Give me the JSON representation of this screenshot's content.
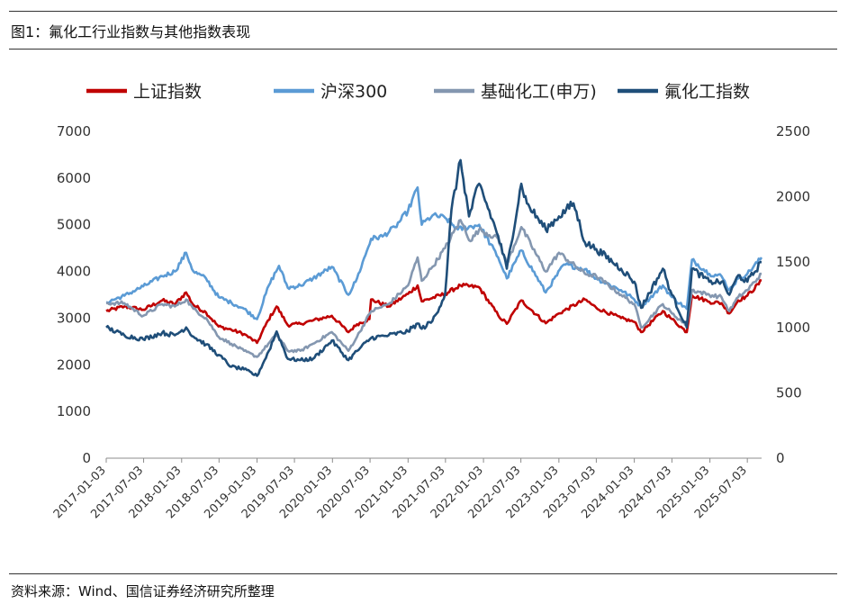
{
  "figure": {
    "title": "图1：氟化工行业指数与其他指数表现",
    "source": "资料来源：Wind、国信证券经济研究所整理"
  },
  "chart_data": {
    "type": "line",
    "title": "",
    "xlabel": "",
    "ylabel_left": "",
    "ylabel_right": "",
    "legend_position": "top",
    "grid": false,
    "x_range": [
      "2017-01-03",
      "2025-09-10"
    ],
    "x_ticks": [
      "2017-01-03",
      "2017-07-03",
      "2018-01-03",
      "2018-07-03",
      "2019-01-03",
      "2019-07-03",
      "2020-01-03",
      "2020-07-03",
      "2021-01-03",
      "2021-07-03",
      "2022-01-03",
      "2022-07-03",
      "2023-01-03",
      "2023-07-03",
      "2024-01-03",
      "2024-07-03",
      "2025-01-03",
      "2025-07-03"
    ],
    "y_left": {
      "range": [
        0,
        7000
      ],
      "ticks": [
        "0",
        "1000",
        "2000",
        "3000",
        "4000",
        "5000",
        "6000",
        "7000"
      ]
    },
    "y_right": {
      "range": [
        0,
        2500
      ],
      "ticks": [
        "0",
        "500",
        "1000",
        "1500",
        "2000",
        "2500"
      ]
    },
    "series": [
      {
        "name": "上证指数",
        "axis": "left",
        "color": "#c00000",
        "points": [
          [
            "2017-01-03",
            3150
          ],
          [
            "2017-04-01",
            3250
          ],
          [
            "2017-07-01",
            3180
          ],
          [
            "2017-10-01",
            3380
          ],
          [
            "2017-12-01",
            3300
          ],
          [
            "2018-01-25",
            3550
          ],
          [
            "2018-03-01",
            3280
          ],
          [
            "2018-05-01",
            3120
          ],
          [
            "2018-07-01",
            2820
          ],
          [
            "2018-09-01",
            2750
          ],
          [
            "2018-11-01",
            2660
          ],
          [
            "2019-01-03",
            2470
          ],
          [
            "2019-02-25",
            2950
          ],
          [
            "2019-04-08",
            3250
          ],
          [
            "2019-06-01",
            2850
          ],
          [
            "2019-08-01",
            2880
          ],
          [
            "2019-10-01",
            2950
          ],
          [
            "2019-12-31",
            3050
          ],
          [
            "2020-03-20",
            2700
          ],
          [
            "2020-05-01",
            2870
          ],
          [
            "2020-06-30",
            2980
          ],
          [
            "2020-07-08",
            3400
          ],
          [
            "2020-10-01",
            3250
          ],
          [
            "2021-01-03",
            3520
          ],
          [
            "2021-02-18",
            3700
          ],
          [
            "2021-03-10",
            3360
          ],
          [
            "2021-07-01",
            3520
          ],
          [
            "2021-09-14",
            3700
          ],
          [
            "2021-12-13",
            3660
          ],
          [
            "2022-03-15",
            3060
          ],
          [
            "2022-04-26",
            2880
          ],
          [
            "2022-07-05",
            3380
          ],
          [
            "2022-10-31",
            2890
          ],
          [
            "2023-01-03",
            3100
          ],
          [
            "2023-05-09",
            3400
          ],
          [
            "2023-07-03",
            3220
          ],
          [
            "2023-10-31",
            3000
          ],
          [
            "2024-01-03",
            2920
          ],
          [
            "2024-02-05",
            2700
          ],
          [
            "2024-05-20",
            3150
          ],
          [
            "2024-07-03",
            2980
          ],
          [
            "2024-09-13",
            2700
          ],
          [
            "2024-10-08",
            3490
          ],
          [
            "2024-12-31",
            3350
          ],
          [
            "2025-02-28",
            3320
          ],
          [
            "2025-04-07",
            3100
          ],
          [
            "2025-05-20",
            3380
          ],
          [
            "2025-07-03",
            3480
          ],
          [
            "2025-09-10",
            3800
          ]
        ]
      },
      {
        "name": "沪深300",
        "axis": "left",
        "color": "#5b9bd5",
        "points": [
          [
            "2017-01-03",
            3340
          ],
          [
            "2017-04-01",
            3480
          ],
          [
            "2017-07-01",
            3680
          ],
          [
            "2017-10-01",
            3900
          ],
          [
            "2017-12-01",
            4000
          ],
          [
            "2018-01-25",
            4400
          ],
          [
            "2018-03-01",
            4000
          ],
          [
            "2018-05-01",
            3850
          ],
          [
            "2018-07-01",
            3450
          ],
          [
            "2018-09-01",
            3330
          ],
          [
            "2018-11-01",
            3200
          ],
          [
            "2019-01-03",
            2980
          ],
          [
            "2019-03-01",
            3700
          ],
          [
            "2019-04-19",
            4120
          ],
          [
            "2019-06-01",
            3650
          ],
          [
            "2019-08-01",
            3700
          ],
          [
            "2019-10-01",
            3850
          ],
          [
            "2019-12-31",
            4100
          ],
          [
            "2020-03-20",
            3500
          ],
          [
            "2020-05-01",
            3850
          ],
          [
            "2020-07-08",
            4700
          ],
          [
            "2020-09-01",
            4750
          ],
          [
            "2020-11-01",
            4950
          ],
          [
            "2021-01-03",
            5300
          ],
          [
            "2021-02-18",
            5800
          ],
          [
            "2021-03-10",
            5000
          ],
          [
            "2021-05-01",
            5200
          ],
          [
            "2021-07-01",
            5150
          ],
          [
            "2021-09-01",
            4900
          ],
          [
            "2021-12-13",
            5000
          ],
          [
            "2022-03-15",
            4300
          ],
          [
            "2022-04-26",
            3850
          ],
          [
            "2022-07-05",
            4450
          ],
          [
            "2022-10-31",
            3550
          ],
          [
            "2023-01-28",
            4150
          ],
          [
            "2023-05-09",
            4050
          ],
          [
            "2023-07-03",
            3850
          ],
          [
            "2023-10-31",
            3600
          ],
          [
            "2024-01-03",
            3400
          ],
          [
            "2024-02-05",
            3250
          ],
          [
            "2024-05-20",
            3700
          ],
          [
            "2024-07-03",
            3450
          ],
          [
            "2024-09-13",
            3200
          ],
          [
            "2024-10-08",
            4250
          ],
          [
            "2024-12-31",
            3950
          ],
          [
            "2025-02-28",
            3900
          ],
          [
            "2025-04-07",
            3600
          ],
          [
            "2025-05-20",
            3850
          ],
          [
            "2025-07-03",
            3950
          ],
          [
            "2025-09-10",
            4300
          ]
        ]
      },
      {
        "name": "基础化工(申万)",
        "axis": "left",
        "color": "#8497b0",
        "points": [
          [
            "2017-01-03",
            3320
          ],
          [
            "2017-04-01",
            3320
          ],
          [
            "2017-07-01",
            3050
          ],
          [
            "2017-10-01",
            3300
          ],
          [
            "2017-12-01",
            3250
          ],
          [
            "2018-01-25",
            3400
          ],
          [
            "2018-03-01",
            3200
          ],
          [
            "2018-05-01",
            3000
          ],
          [
            "2018-07-01",
            2600
          ],
          [
            "2018-09-01",
            2450
          ],
          [
            "2018-11-01",
            2300
          ],
          [
            "2019-01-03",
            2170
          ],
          [
            "2019-04-08",
            2650
          ],
          [
            "2019-06-01",
            2300
          ],
          [
            "2019-08-01",
            2300
          ],
          [
            "2019-10-01",
            2450
          ],
          [
            "2019-12-31",
            2700
          ],
          [
            "2020-03-20",
            2300
          ],
          [
            "2020-05-01",
            2600
          ],
          [
            "2020-07-08",
            3150
          ],
          [
            "2020-10-01",
            3300
          ],
          [
            "2021-01-03",
            3700
          ],
          [
            "2021-02-18",
            4300
          ],
          [
            "2021-03-10",
            3800
          ],
          [
            "2021-05-01",
            4100
          ],
          [
            "2021-07-01",
            4500
          ],
          [
            "2021-09-14",
            5100
          ],
          [
            "2021-11-01",
            4650
          ],
          [
            "2021-12-13",
            4900
          ],
          [
            "2022-03-15",
            4700
          ],
          [
            "2022-04-26",
            4150
          ],
          [
            "2022-07-05",
            4950
          ],
          [
            "2022-10-31",
            4000
          ],
          [
            "2023-01-03",
            4400
          ],
          [
            "2023-05-09",
            3950
          ],
          [
            "2023-07-03",
            3900
          ],
          [
            "2023-10-31",
            3500
          ],
          [
            "2024-01-03",
            3300
          ],
          [
            "2024-02-05",
            2800
          ],
          [
            "2024-05-20",
            3300
          ],
          [
            "2024-07-03",
            3100
          ],
          [
            "2024-09-13",
            2850
          ],
          [
            "2024-10-08",
            3600
          ],
          [
            "2024-12-31",
            3500
          ],
          [
            "2025-02-28",
            3450
          ],
          [
            "2025-04-07",
            3150
          ],
          [
            "2025-05-20",
            3450
          ],
          [
            "2025-07-03",
            3600
          ],
          [
            "2025-09-10",
            3950
          ]
        ]
      },
      {
        "name": "氟化工指数",
        "axis": "right",
        "color": "#1f4e79",
        "points": [
          [
            "2017-01-03",
            1000
          ],
          [
            "2017-04-01",
            940
          ],
          [
            "2017-07-01",
            910
          ],
          [
            "2017-10-01",
            960
          ],
          [
            "2017-12-01",
            940
          ],
          [
            "2018-01-25",
            1000
          ],
          [
            "2018-03-01",
            930
          ],
          [
            "2018-05-01",
            870
          ],
          [
            "2018-07-01",
            790
          ],
          [
            "2018-09-01",
            700
          ],
          [
            "2018-11-01",
            680
          ],
          [
            "2019-01-03",
            630
          ],
          [
            "2019-03-01",
            820
          ],
          [
            "2019-04-08",
            970
          ],
          [
            "2019-06-01",
            760
          ],
          [
            "2019-08-01",
            750
          ],
          [
            "2019-10-01",
            760
          ],
          [
            "2019-12-31",
            900
          ],
          [
            "2020-03-20",
            750
          ],
          [
            "2020-05-01",
            820
          ],
          [
            "2020-07-08",
            920
          ],
          [
            "2020-10-01",
            940
          ],
          [
            "2021-01-03",
            970
          ],
          [
            "2021-02-18",
            1030
          ],
          [
            "2021-03-10",
            990
          ],
          [
            "2021-05-01",
            1050
          ],
          [
            "2021-07-01",
            1250
          ],
          [
            "2021-08-01",
            1900
          ],
          [
            "2021-09-14",
            2280
          ],
          [
            "2021-10-25",
            1850
          ],
          [
            "2021-12-13",
            2100
          ],
          [
            "2022-03-15",
            1700
          ],
          [
            "2022-04-26",
            1450
          ],
          [
            "2022-07-05",
            2100
          ],
          [
            "2022-08-01",
            1950
          ],
          [
            "2022-10-31",
            1750
          ],
          [
            "2023-01-03",
            1850
          ],
          [
            "2023-03-15",
            1950
          ],
          [
            "2023-05-09",
            1650
          ],
          [
            "2023-07-03",
            1600
          ],
          [
            "2023-10-31",
            1450
          ],
          [
            "2024-01-03",
            1350
          ],
          [
            "2024-02-05",
            1150
          ],
          [
            "2024-05-20",
            1450
          ],
          [
            "2024-07-03",
            1250
          ],
          [
            "2024-09-13",
            1000
          ],
          [
            "2024-10-08",
            1450
          ],
          [
            "2024-12-31",
            1350
          ],
          [
            "2025-02-28",
            1350
          ],
          [
            "2025-04-07",
            1250
          ],
          [
            "2025-05-20",
            1400
          ],
          [
            "2025-07-03",
            1350
          ],
          [
            "2025-09-10",
            1500
          ]
        ]
      }
    ]
  }
}
